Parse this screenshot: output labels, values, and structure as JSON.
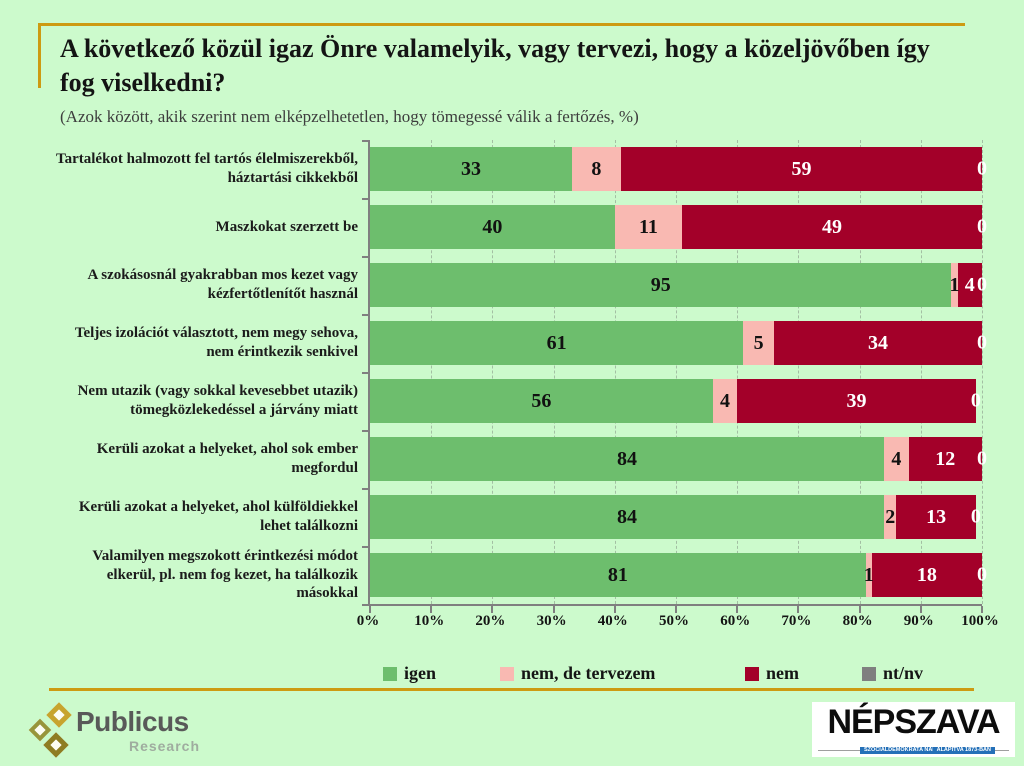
{
  "title": "A következő közül igaz Önre valamelyik, vagy tervezi, hogy a közeljövőben így fog viselkedni?",
  "subtitle": "(Azok között, akik szerint nem elképzelhetetlen, hogy tömegessé válik a fertőzés, %)",
  "colors": {
    "background": "#ccfacc",
    "accent_rule": "#cd9a12",
    "axis": "#7f7f7f",
    "igen": "#6dbe6d",
    "nem_de_tervezem": "#f9b9b2",
    "nem": "#a30029",
    "nt_nv": "#7f7f7f"
  },
  "chart_data": {
    "type": "bar",
    "stacked": true,
    "orientation": "horizontal",
    "grid": "vertical-dashed",
    "legend_position": "bottom",
    "xlim": [
      0,
      100
    ],
    "x_ticks": [
      "0%",
      "10%",
      "20%",
      "30%",
      "40%",
      "50%",
      "60%",
      "70%",
      "80%",
      "90%",
      "100%"
    ],
    "categories": [
      "Tartalékot halmozott fel tartós élelmiszerekből, háztartási cikkekből",
      "Maszkokat szerzett be",
      "A szokásosnál gyakrabban mos kezet vagy kézfertőtlenítőt használ",
      "Teljes izolációt választott, nem megy sehova, nem érintkezik senkivel",
      "Nem utazik (vagy sokkal kevesebbet utazik) tömegközlekedéssel a járvány miatt",
      "Kerüli azokat a helyeket, ahol sok ember megfordul",
      "Kerüli azokat a helyeket, ahol külföldiekkel lehet találkozni",
      "Valamilyen megszokott érintkezési módot elkerül, pl. nem fog kezet, ha találkozik másokkal"
    ],
    "series": [
      {
        "name": "igen",
        "color": "#6dbe6d",
        "label_color": "#111111",
        "values": [
          33,
          40,
          95,
          61,
          56,
          84,
          84,
          81
        ]
      },
      {
        "name": "nem, de tervezem",
        "color": "#f9b9b2",
        "label_color": "#111111",
        "values": [
          8,
          11,
          1,
          5,
          4,
          4,
          2,
          1
        ]
      },
      {
        "name": "nem",
        "color": "#a30029",
        "label_color": "#ffffff",
        "values": [
          59,
          49,
          4,
          34,
          39,
          12,
          13,
          18
        ]
      },
      {
        "name": "nt/nv",
        "color": "#7f7f7f",
        "label_color": "#ffffff",
        "values": [
          0,
          0,
          0,
          0,
          0,
          0,
          0,
          0
        ]
      }
    ]
  },
  "footer": {
    "publicus": {
      "name": "Publicus",
      "sub": "Research"
    },
    "nepszava": {
      "name": "NÉPSZAVA",
      "tag1": "SZOCIÁLDEMOKRATA NAPILAP",
      "tag2": "ALAPÍTVA 1873-BAN"
    }
  }
}
